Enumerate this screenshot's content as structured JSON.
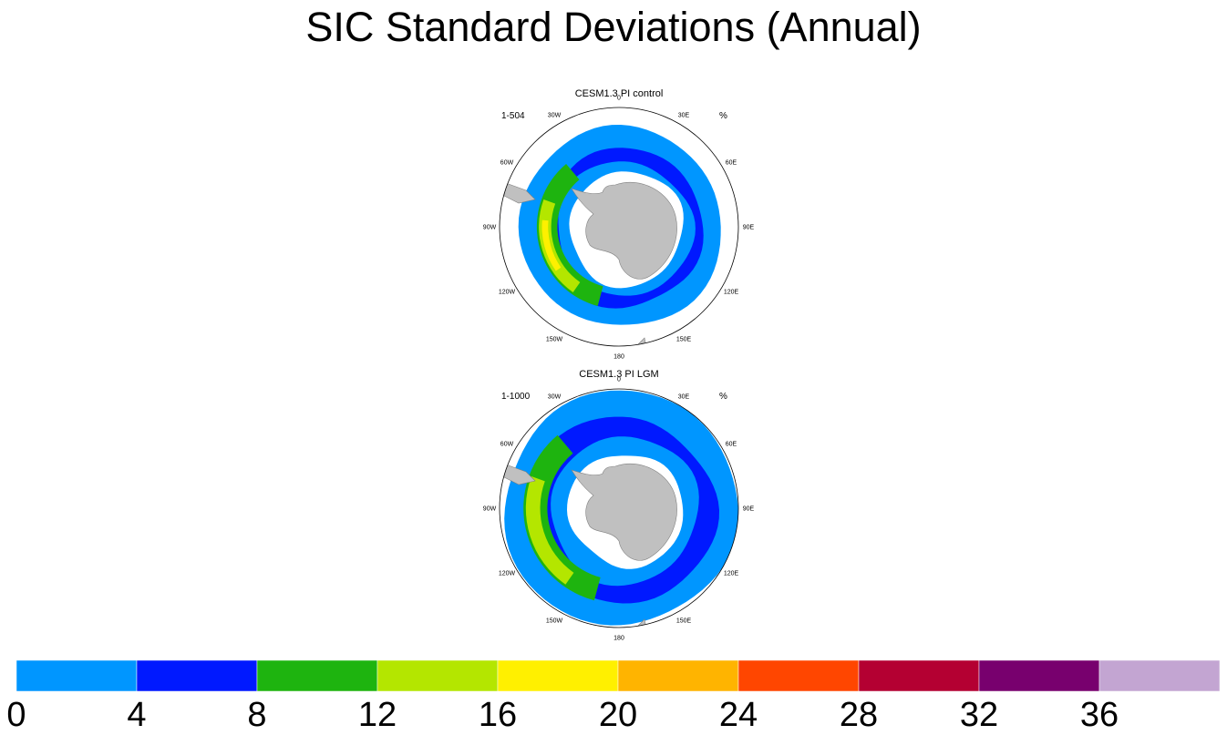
{
  "page_title": "SIC Standard Deviations (Annual)",
  "chart_data": {
    "type": "heatmap",
    "projection": "south-polar-stereographic",
    "title": "SIC Standard Deviations (Annual)",
    "units": "%",
    "longitude_labels": [
      "0",
      "30E",
      "60E",
      "90E",
      "120E",
      "150E",
      "180",
      "150W",
      "120W",
      "90W",
      "60W",
      "30W"
    ],
    "panels": [
      {
        "name": "pi-control",
        "title": "CESM1.3 PI control",
        "years": "1-504",
        "units": "%"
      },
      {
        "name": "lgm",
        "title": "CESM1.3 PI LGM",
        "years": "1-1000",
        "units": "%"
      }
    ],
    "colorbar": {
      "tick_labels": [
        "0",
        "4",
        "8",
        "12",
        "16",
        "20",
        "24",
        "28",
        "32",
        "36"
      ],
      "bins": [
        {
          "min": 0,
          "max": 4,
          "color": "#0096ff"
        },
        {
          "min": 4,
          "max": 8,
          "color": "#0019ff"
        },
        {
          "min": 8,
          "max": 12,
          "color": "#1eb40f"
        },
        {
          "min": 12,
          "max": 16,
          "color": "#b4e600"
        },
        {
          "min": 16,
          "max": 20,
          "color": "#fff000"
        },
        {
          "min": 20,
          "max": 24,
          "color": "#ffb400"
        },
        {
          "min": 24,
          "max": 28,
          "color": "#ff4600"
        },
        {
          "min": 28,
          "max": 32,
          "color": "#b40032"
        },
        {
          "min": 32,
          "max": 36,
          "color": "#78006e"
        },
        {
          "min": 36,
          "max": 40,
          "color": "#c3a5d2"
        }
      ]
    },
    "land_color": "#c0c0c0"
  }
}
